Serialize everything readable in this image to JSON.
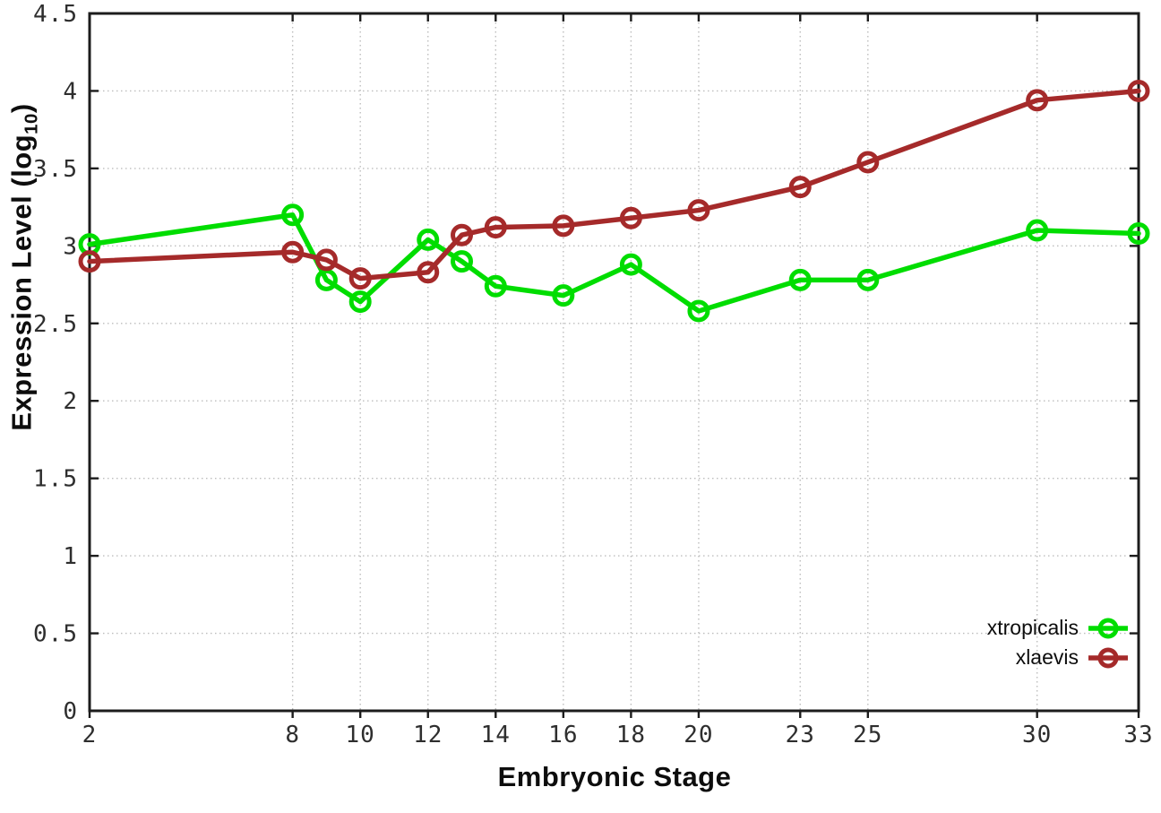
{
  "chart_data": {
    "type": "line",
    "title": "",
    "xlabel": "Embryonic Stage",
    "ylabel": "Expression Level (log10)",
    "ylabel_parts": {
      "main": "Expression Level (log",
      "sub": "10",
      "end": ")"
    },
    "x": [
      2,
      8,
      9,
      10,
      12,
      13,
      14,
      16,
      18,
      20,
      23,
      25,
      30,
      33
    ],
    "series": [
      {
        "name": "xtropicalis",
        "color": "#00DD00",
        "values": [
          3.01,
          3.2,
          2.78,
          2.64,
          3.04,
          2.9,
          2.74,
          2.68,
          2.88,
          2.58,
          2.78,
          2.78,
          3.1,
          3.08
        ]
      },
      {
        "name": "xlaevis",
        "color": "#A52A2A",
        "values": [
          2.9,
          2.96,
          2.91,
          2.79,
          2.83,
          3.07,
          3.12,
          3.13,
          3.18,
          3.23,
          3.38,
          3.54,
          3.94,
          4.0
        ]
      }
    ],
    "xticks": [
      2,
      8,
      10,
      12,
      14,
      16,
      18,
      20,
      23,
      25,
      30,
      33
    ],
    "yticks": [
      0,
      0.5,
      1,
      1.5,
      2,
      2.5,
      3,
      3.5,
      4,
      4.5
    ],
    "xlim": [
      2,
      33
    ],
    "ylim": [
      0,
      4.5
    ],
    "grid": "dotted",
    "border": "full-box",
    "marker": "open-circle",
    "legend_position": "bottom-right",
    "background": "#ffffff",
    "grid_color": "#bdbdbd",
    "axis_color": "#1c1c1c"
  }
}
